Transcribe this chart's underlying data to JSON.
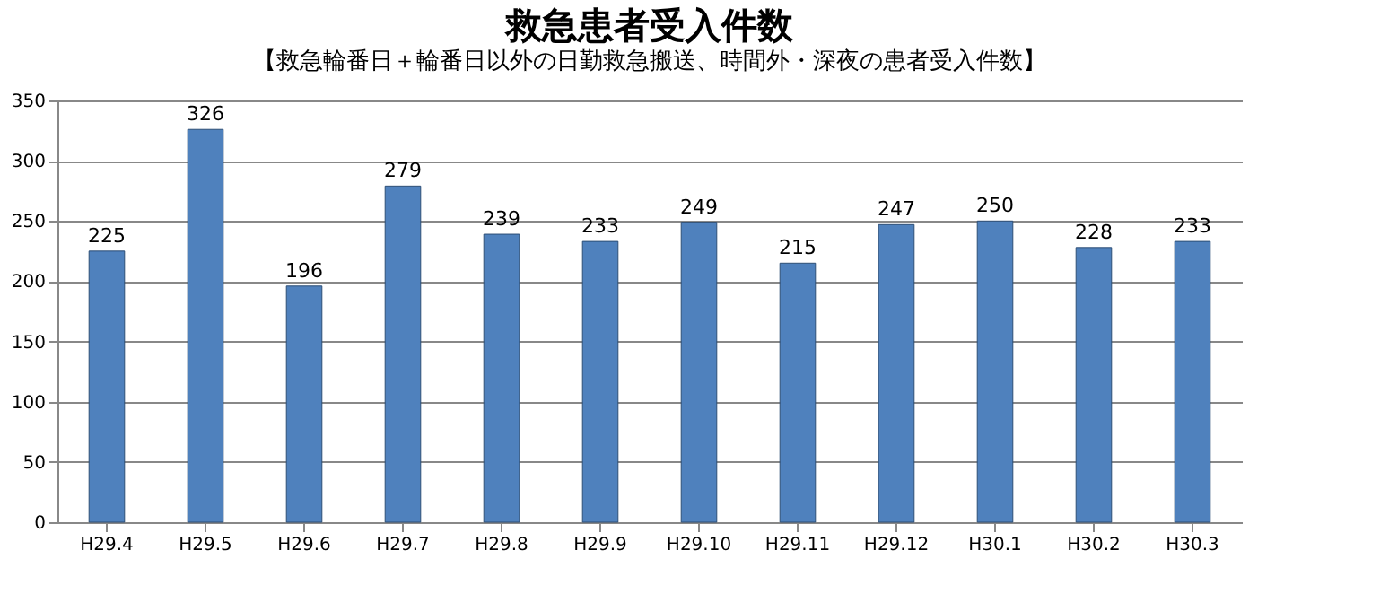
{
  "chart_data": {
    "type": "bar",
    "title": "救急患者受入件数",
    "subtitle": "【救急輪番日＋輪番日以外の日勤救急搬送、時間外・深夜の患者受入件数】",
    "categories": [
      "H29.4",
      "H29.5",
      "H29.6",
      "H29.7",
      "H29.8",
      "H29.9",
      "H29.10",
      "H29.11",
      "H29.12",
      "H30.1",
      "H30.2",
      "H30.3"
    ],
    "values": [
      225,
      326,
      196,
      279,
      239,
      233,
      249,
      215,
      247,
      250,
      228,
      233
    ],
    "color": "#4f81bd",
    "ylim": [
      0,
      350
    ],
    "yticks": [
      0,
      50,
      100,
      150,
      200,
      250,
      300,
      350
    ],
    "grid": "y",
    "data_labels": true
  }
}
